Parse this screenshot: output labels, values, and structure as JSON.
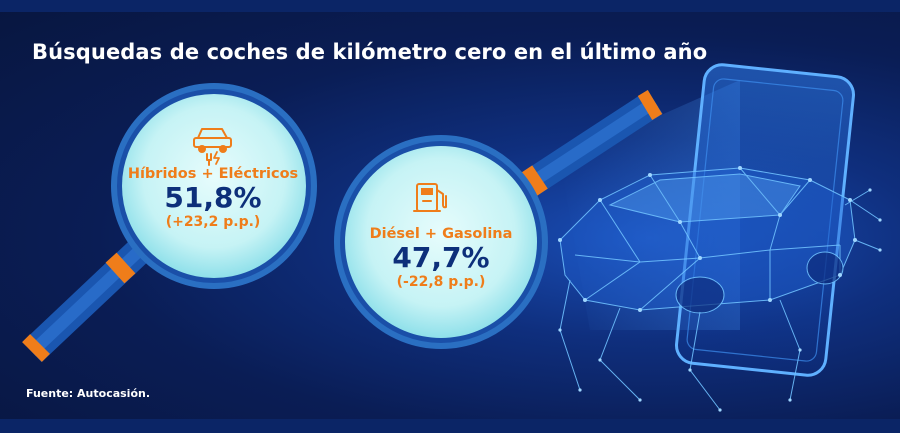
{
  "title": "Búsquedas de coches de kilómetro cero en el último año",
  "source": "Fuente: Autocasión.",
  "colors": {
    "orange": "#ef7d1a",
    "navy": "#0d2f7a",
    "lens_fill": "#c6f3f5",
    "lens_rim": "#2a6fc2",
    "handle": "#1a56b0",
    "background": "#0a1d55"
  },
  "lenses": [
    {
      "label": "Híbridos + Eléctricos",
      "value": "51,8%",
      "change": "(+23,2 p.p.)",
      "icon": "electric-car-icon"
    },
    {
      "label": "Diésel + Gasolina",
      "value": "47,7%",
      "change": "(-22,8 p.p.)",
      "icon": "fuel-pump-icon"
    }
  ]
}
